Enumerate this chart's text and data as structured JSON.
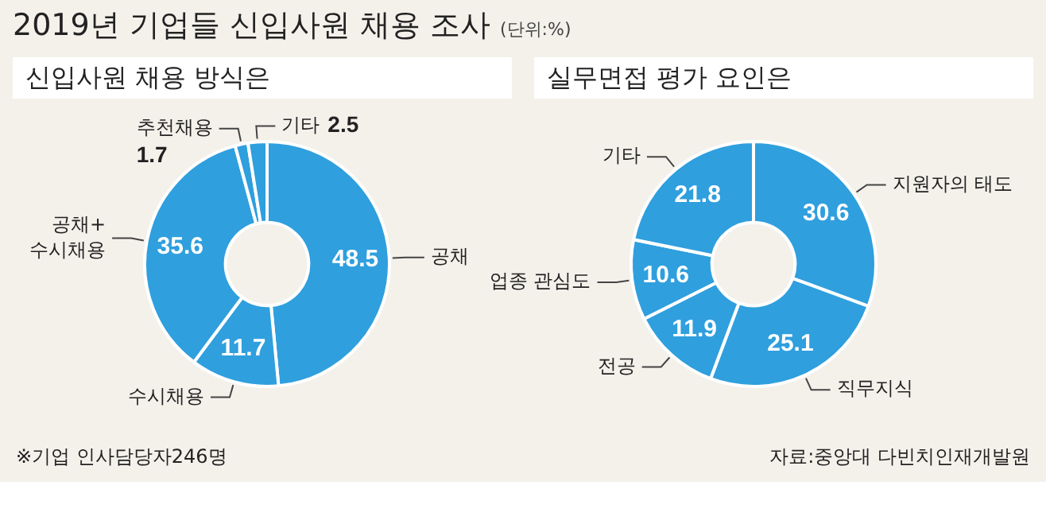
{
  "chart_data": [
    {
      "type": "donut",
      "title": "2019년 기업들 신입사원 채용 조사",
      "subtitle": "신입사원 채용 방식은",
      "annotations": [
        "(단위:%)",
        "※기업 인사담당자246명"
      ],
      "categories": [
        "공채",
        "수시채용",
        "공채+ 수시채용",
        "추천채용",
        "기타"
      ],
      "values": [
        48.5,
        11.7,
        35.6,
        1.7,
        2.5
      ],
      "colors": [
        "#2f9fde",
        "#2f9fde",
        "#2f9fde",
        "#2f9fde",
        "#2f9fde"
      ],
      "data_labels": true
    },
    {
      "type": "donut",
      "subtitle": "실무면접 평가 요인은",
      "annotations": [
        "자료:중앙대 다빈치인재개발원"
      ],
      "categories": [
        "지원자의 태도",
        "직무지식",
        "전공",
        "업종 관심도",
        "기타"
      ],
      "values": [
        30.6,
        25.1,
        11.9,
        10.6,
        21.8
      ],
      "colors": [
        "#2f9fde",
        "#2f9fde",
        "#2f9fde",
        "#2f9fde",
        "#2f9fde"
      ],
      "data_labels": true
    }
  ]
}
